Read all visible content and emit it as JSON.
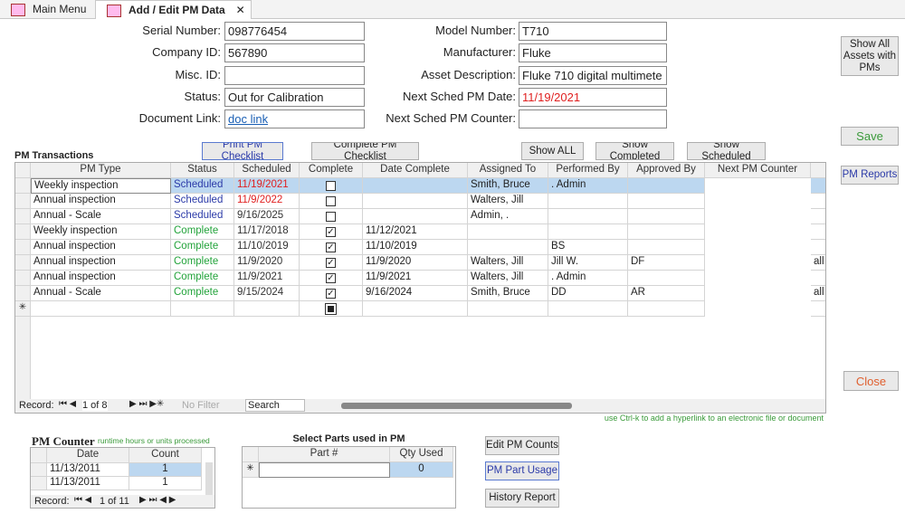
{
  "tabs": {
    "main": "Main Menu",
    "active": "Add / Edit PM Data"
  },
  "fields_left": [
    {
      "label": "Serial Number:",
      "value": "098776454"
    },
    {
      "label": "Company ID:",
      "value": "567890"
    },
    {
      "label": "Misc. ID:"
    },
    {
      "label": "Status:",
      "value": "Out for Calibration"
    },
    {
      "label": "Document Link:",
      "value": "doc link",
      "link": true
    }
  ],
  "fields_right": [
    {
      "label": "Model Number:",
      "value": "T710"
    },
    {
      "label": "Manufacturer:",
      "value": "Fluke"
    },
    {
      "label": "Asset Description:",
      "value": "Fluke 710 digital multimete"
    },
    {
      "label": "Next Sched PM Date:",
      "value": "11/19/2021",
      "color": "#e02020"
    },
    {
      "label": "Next Sched PM Counter:"
    }
  ],
  "side_buttons": {
    "show_all_assets": "Show All Assets with PMs",
    "save": "Save",
    "pm_reports": "PM Reports",
    "close": "Close"
  },
  "transactions": {
    "title": "PM Transactions",
    "buttons": [
      "Print PM Checklist",
      "Complete PM Checklist",
      "Show ALL",
      "Show Completed",
      "Show Scheduled"
    ],
    "columns": [
      "PM Type",
      "Status",
      "Scheduled",
      "Complete",
      "Date Complete",
      "Assigned To",
      "Performed By",
      "Approved By",
      "Next PM Counter"
    ],
    "rows": [
      {
        "pm_type": "Weekly inspection",
        "status": "Scheduled",
        "status_color": "#2b3aa8",
        "scheduled": "11/19/2021",
        "scheduled_color": "#e02020",
        "complete": false,
        "date_complete": null,
        "assigned_to": "Smith, Bruce",
        "performed_by": ". Admin",
        "approved_by": null,
        "extra": null
      },
      {
        "pm_type": "Annual inspection",
        "status": "Scheduled",
        "status_color": "#2b3aa8",
        "scheduled": "11/9/2022",
        "scheduled_color": "#e02020",
        "complete": false,
        "date_complete": null,
        "assigned_to": "Walters, Jill",
        "performed_by": null,
        "approved_by": null,
        "extra": null
      },
      {
        "pm_type": "Annual - Scale",
        "status": "Scheduled",
        "status_color": "#2b3aa8",
        "scheduled": "9/16/2025",
        "scheduled_color": "#333333",
        "complete": false,
        "date_complete": null,
        "assigned_to": "Admin, .",
        "performed_by": null,
        "approved_by": null,
        "extra": null
      },
      {
        "pm_type": "Weekly inspection",
        "status": "Complete",
        "status_color": "#22a33a",
        "scheduled": "11/17/2018",
        "scheduled_color": "#333333",
        "complete": true,
        "date_complete": "11/12/2021",
        "assigned_to": null,
        "performed_by": null,
        "approved_by": null,
        "extra": null
      },
      {
        "pm_type": "Annual inspection",
        "status": "Complete",
        "status_color": "#22a33a",
        "scheduled": "11/10/2019",
        "scheduled_color": "#333333",
        "complete": true,
        "date_complete": "11/10/2019",
        "assigned_to": null,
        "performed_by": "BS",
        "approved_by": null,
        "extra": null
      },
      {
        "pm_type": "Annual inspection",
        "status": "Complete",
        "status_color": "#22a33a",
        "scheduled": "11/9/2020",
        "scheduled_color": "#333333",
        "complete": true,
        "date_complete": "11/9/2020",
        "assigned_to": "Walters, Jill",
        "performed_by": "Jill W.",
        "approved_by": "DF",
        "extra": "all"
      },
      {
        "pm_type": "Annual inspection",
        "status": "Complete",
        "status_color": "#22a33a",
        "scheduled": "11/9/2021",
        "scheduled_color": "#333333",
        "complete": true,
        "date_complete": "11/9/2021",
        "assigned_to": "Walters, Jill",
        "performed_by": ". Admin",
        "approved_by": null,
        "extra": null
      },
      {
        "pm_type": "Annual - Scale",
        "status": "Complete",
        "status_color": "#22a33a",
        "scheduled": "9/15/2024",
        "scheduled_color": "#333333",
        "complete": true,
        "date_complete": "9/16/2024",
        "assigned_to": "Smith, Bruce",
        "performed_by": "DD",
        "approved_by": "AR",
        "extra": "all"
      }
    ],
    "nav": {
      "record": "Record:",
      "position": "1 of 8",
      "filter": "No Filter",
      "search": "Search"
    },
    "hint": "use Ctrl-k to add a hyperlink to an electronic file or document"
  },
  "pm_counter": {
    "title": "PM Counter",
    "subtitle": "runtime hours or units processed",
    "columns": [
      "Date",
      "Count"
    ],
    "rows": [
      [
        "11/13/2011",
        "1"
      ],
      [
        "11/13/2011",
        "1"
      ]
    ],
    "nav": {
      "record": "Record:",
      "position": "1 of 11"
    }
  },
  "parts": {
    "title": "Select Parts used in PM",
    "columns": [
      "Part #",
      "Qty Used"
    ],
    "new_qty": "0"
  },
  "bottom_buttons": [
    "Edit PM Counts",
    "PM Part Usage",
    "History Report"
  ]
}
